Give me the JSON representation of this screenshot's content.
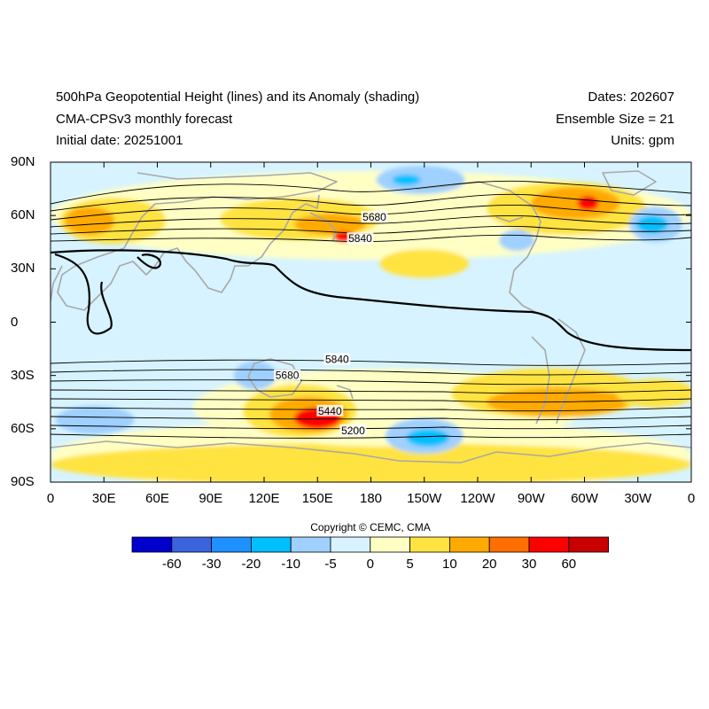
{
  "header": {
    "title": "500hPa Geopotential Height (lines) and its Anomaly (shading)",
    "model": "CMA-CPSv3 monthly forecast",
    "initial_date": "Initial date: 20251001",
    "dates": "Dates: 202607",
    "ensemble": "Ensemble Size = 21",
    "units": "Units: gpm"
  },
  "axes": {
    "lat_labels": [
      "90N",
      "60N",
      "30N",
      "0",
      "30S",
      "60S",
      "90S"
    ],
    "lon_labels": [
      "0",
      "30E",
      "60E",
      "90E",
      "120E",
      "150E",
      "180",
      "150W",
      "120W",
      "90W",
      "60W",
      "30W",
      "0"
    ]
  },
  "contour_labels": [
    {
      "text": "5680",
      "lon": 182,
      "lat": 59
    },
    {
      "text": "5840",
      "lon": 174,
      "lat": 47
    },
    {
      "text": "5840",
      "lon": 161,
      "lat": -21
    },
    {
      "text": "5680",
      "lon": 133,
      "lat": -30
    },
    {
      "text": "5440",
      "lon": 157,
      "lat": -50
    },
    {
      "text": "5200",
      "lon": 170,
      "lat": -61
    }
  ],
  "anomaly_regions": [
    {
      "level": 5,
      "lon": 180,
      "lat": 60,
      "rx": 180,
      "ry": 25
    },
    {
      "level": 10,
      "lon": 35,
      "lat": 57,
      "rx": 30,
      "ry": 13
    },
    {
      "level": 20,
      "lon": 22,
      "lat": 57,
      "rx": 14,
      "ry": 8
    },
    {
      "level": 10,
      "lon": 140,
      "lat": 58,
      "rx": 45,
      "ry": 12
    },
    {
      "level": 20,
      "lon": 157,
      "lat": 55,
      "rx": 20,
      "ry": 6
    },
    {
      "level": 30,
      "lon": 165,
      "lat": 48,
      "rx": 6,
      "ry": 3
    },
    {
      "level": 10,
      "lon": 290,
      "lat": 64,
      "rx": 45,
      "ry": 15
    },
    {
      "level": 20,
      "lon": 295,
      "lat": 67,
      "rx": 25,
      "ry": 9
    },
    {
      "level": 30,
      "lon": 302,
      "lat": 67,
      "rx": 6,
      "ry": 4
    },
    {
      "level": 10,
      "lon": 210,
      "lat": 33,
      "rx": 25,
      "ry": 8
    },
    {
      "level": -5,
      "lon": 208,
      "lat": 80,
      "rx": 25,
      "ry": 8
    },
    {
      "level": -10,
      "lon": 200,
      "lat": 80,
      "rx": 8,
      "ry": 3
    },
    {
      "level": -5,
      "lon": 340,
      "lat": 55,
      "rx": 15,
      "ry": 10
    },
    {
      "level": -10,
      "lon": 338,
      "lat": 55,
      "rx": 9,
      "ry": 5
    },
    {
      "level": 5,
      "lon": 180,
      "lat": -75,
      "rx": 180,
      "ry": 20
    },
    {
      "level": 10,
      "lon": 180,
      "lat": -80,
      "rx": 180,
      "ry": 12
    },
    {
      "level": 5,
      "lon": 190,
      "lat": -48,
      "rx": 110,
      "ry": 22
    },
    {
      "level": 10,
      "lon": 140,
      "lat": -50,
      "rx": 32,
      "ry": 15
    },
    {
      "level": 20,
      "lon": 145,
      "lat": -52,
      "rx": 22,
      "ry": 10
    },
    {
      "level": 30,
      "lon": 150,
      "lat": -54,
      "rx": 13,
      "ry": 6
    },
    {
      "level": 10,
      "lon": 280,
      "lat": -40,
      "rx": 55,
      "ry": 14
    },
    {
      "level": 20,
      "lon": 285,
      "lat": -45,
      "rx": 40,
      "ry": 8
    },
    {
      "level": 10,
      "lon": 340,
      "lat": -40,
      "rx": 22,
      "ry": 8
    },
    {
      "level": -5,
      "lon": 210,
      "lat": -64,
      "rx": 22,
      "ry": 10
    },
    {
      "level": -10,
      "lon": 212,
      "lat": -65,
      "rx": 12,
      "ry": 5
    },
    {
      "level": -5,
      "lon": 25,
      "lat": -55,
      "rx": 22,
      "ry": 8
    },
    {
      "level": -5,
      "lon": 115,
      "lat": -30,
      "rx": 12,
      "ry": 8
    },
    {
      "level": -5,
      "lon": 262,
      "lat": 46,
      "rx": 10,
      "ry": 6
    }
  ],
  "legend": {
    "colors": [
      "#0000cd",
      "#3a64dd",
      "#1e90ff",
      "#00bfff",
      "#9fd0ff",
      "#d6f3ff",
      "#ffffc4",
      "#ffe341",
      "#ffaa00",
      "#ff6e00",
      "#ff0000",
      "#c80000"
    ],
    "labels": [
      "-60",
      "-30",
      "-20",
      "-10",
      "-5",
      "0",
      "5",
      "10",
      "20",
      "30",
      "60"
    ],
    "levels": {
      "-10": "#00bfff",
      "-5": "#9fd0ff",
      "5": "#ffffc4",
      "10": "#ffe341",
      "20": "#ffaa00",
      "30": "#ff0000"
    }
  },
  "copyright": "Copyright © CEMC, CMA",
  "colors": {
    "background": "#d6f3ff",
    "coastline": "#a8a8a8",
    "contour": "#000000"
  }
}
